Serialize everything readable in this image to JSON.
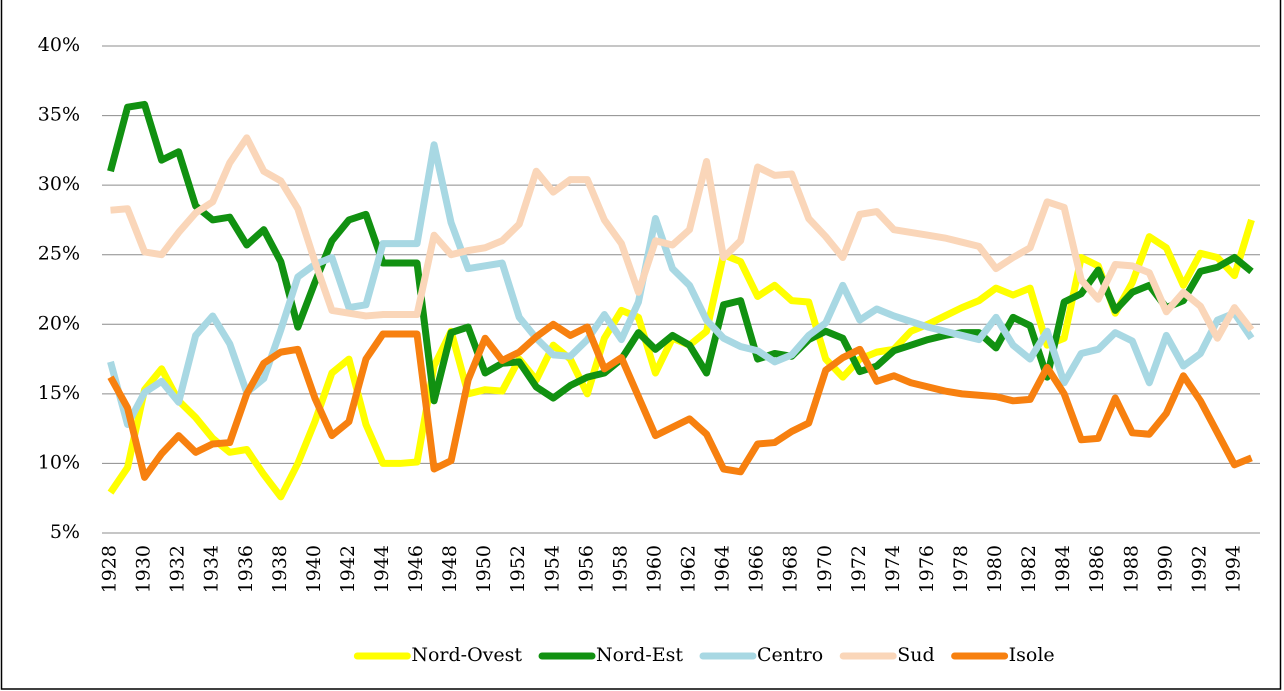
{
  "chart_data": {
    "type": "line",
    "categories": [
      "1928",
      null,
      "1930",
      null,
      "1932",
      null,
      "1934",
      null,
      "1936",
      null,
      "1938",
      null,
      "1940",
      null,
      "1942",
      null,
      "1944",
      null,
      "1946",
      null,
      "1948",
      null,
      "1950",
      null,
      "1952",
      null,
      "1954",
      null,
      "1956",
      null,
      "1958",
      null,
      "1960",
      null,
      "1962",
      null,
      "1964",
      null,
      "1966",
      null,
      "1968",
      null,
      "1970",
      null,
      "1972",
      null,
      "1974",
      null,
      "1976",
      null,
      "1978",
      null,
      "1980",
      null,
      "1982",
      null,
      "1984",
      null,
      "1986",
      null,
      "1988",
      null,
      "1990",
      null,
      "1992",
      null,
      "1994",
      null
    ],
    "series": [
      {
        "name": "Nord-Ovest",
        "color": "#ffff00",
        "values": [
          7.9,
          9.7,
          15.3,
          16.8,
          14.5,
          13.3,
          11.8,
          10.8,
          11,
          9.2,
          7.6,
          10,
          13,
          16.5,
          17.5,
          12.8,
          10,
          10,
          10.1,
          17,
          19.5,
          15,
          15.3,
          15.2,
          17.5,
          16,
          18.5,
          17.5,
          15,
          19,
          21,
          20.5,
          16.5,
          19,
          18.5,
          19.5,
          25,
          24.5,
          22,
          22.8,
          21.7,
          21.6,
          17.5,
          16.2,
          17.5,
          18,
          18.2,
          19.5,
          20,
          20.6,
          21.2,
          21.7,
          22.6,
          22.1,
          22.6,
          18.5,
          19,
          24.8,
          24.2,
          20.8,
          23,
          26.3,
          25.5,
          22.8,
          25.1,
          24.8,
          23.5,
          27.5
        ]
      },
      {
        "name": "Nord-Est",
        "color": "#119111",
        "values": [
          31,
          35.6,
          35.8,
          31.8,
          32.4,
          28.5,
          27.5,
          27.7,
          25.7,
          26.8,
          24.5,
          19.8,
          23,
          26,
          27.5,
          27.9,
          24.4,
          24.4,
          24.4,
          14.5,
          19.4,
          19.8,
          16.5,
          17.2,
          17.3,
          15.5,
          14.7,
          15.6,
          16.2,
          16.5,
          17.5,
          19.4,
          18.2,
          19.2,
          18.5,
          16.5,
          21.4,
          21.7,
          17.5,
          17.9,
          17.7,
          18.9,
          19.5,
          19,
          16.6,
          17,
          18.1,
          18.5,
          18.9,
          19.2,
          19.4,
          19.4,
          18.3,
          20.5,
          19.9,
          16.2,
          21.6,
          22.2,
          23.9,
          21,
          22.3,
          22.8,
          21.2,
          21.7,
          23.8,
          24.1,
          24.8,
          23.8
        ]
      },
      {
        "name": "Centro",
        "color": "#a8d8e3",
        "values": [
          17.3,
          12.8,
          15.1,
          15.9,
          14.4,
          19.2,
          20.6,
          18.6,
          15.1,
          16.1,
          19.6,
          23.4,
          24.3,
          24.8,
          21.2,
          21.4,
          25.8,
          25.8,
          25.8,
          32.9,
          27.3,
          24,
          24.2,
          24.4,
          20.5,
          19,
          17.8,
          17.7,
          18.9,
          20.7,
          18.9,
          21.6,
          27.6,
          24,
          22.8,
          20.3,
          19,
          18.4,
          18.1,
          17.3,
          17.8,
          19.2,
          20.1,
          22.8,
          20.3,
          21.1,
          20.6,
          20.2,
          19.8,
          19.5,
          19.2,
          18.9,
          20.5,
          18.5,
          17.5,
          19.5,
          15.8,
          17.9,
          18.2,
          19.4,
          18.8,
          15.8,
          19.2,
          17,
          17.9,
          20.3,
          20.8,
          19
        ]
      },
      {
        "name": "Sud",
        "color": "#fad6b9",
        "values": [
          28.2,
          28.3,
          25.2,
          25,
          26.6,
          28,
          28.8,
          31.6,
          33.4,
          31,
          30.3,
          28.3,
          24.5,
          21,
          20.8,
          20.6,
          20.7,
          20.7,
          20.7,
          26.4,
          25,
          25.3,
          25.5,
          26,
          27.2,
          31,
          29.5,
          30.4,
          30.4,
          27.5,
          25.8,
          22.3,
          26,
          25.7,
          26.8,
          31.7,
          24.8,
          26,
          31.3,
          30.7,
          30.8,
          27.6,
          26.3,
          24.8,
          27.9,
          28.1,
          26.8,
          26.6,
          26.4,
          26.2,
          25.9,
          25.6,
          24,
          24.8,
          25.5,
          28.8,
          28.4,
          23.2,
          21.8,
          24.3,
          24.2,
          23.7,
          20.9,
          22.3,
          21.3,
          19,
          21.2,
          19.6
        ]
      },
      {
        "name": "Isole",
        "color": "#f7800f",
        "values": [
          16.2,
          14,
          9,
          10.7,
          12,
          10.8,
          11.4,
          11.5,
          15,
          17.2,
          18,
          18.2,
          14.7,
          12,
          13,
          17.5,
          19.3,
          19.3,
          19.3,
          9.6,
          10.2,
          16,
          19,
          17.4,
          18,
          19.1,
          20,
          19.2,
          19.8,
          16.8,
          17.6,
          14.8,
          12,
          12.6,
          13.2,
          12.1,
          9.6,
          9.4,
          11.4,
          11.5,
          12.3,
          12.9,
          16.7,
          17.6,
          18.2,
          15.9,
          16.3,
          15.8,
          15.5,
          15.2,
          15,
          14.9,
          14.8,
          14.5,
          14.6,
          16.9,
          15,
          11.7,
          11.8,
          14.7,
          12.2,
          12.1,
          13.6,
          16.3,
          14.5,
          12.2,
          9.9,
          10.4
        ]
      }
    ],
    "ylim": [
      5,
      40
    ],
    "yticks": [
      {
        "value": 5,
        "label": "5%"
      },
      {
        "value": 10,
        "label": "10%"
      },
      {
        "value": 15,
        "label": "15%"
      },
      {
        "value": 20,
        "label": "20%"
      },
      {
        "value": 25,
        "label": "25%"
      },
      {
        "value": 30,
        "label": "30%"
      },
      {
        "value": 35,
        "label": "35%"
      },
      {
        "value": 40,
        "label": "40%"
      }
    ],
    "grid": true,
    "legend": "bottom"
  }
}
